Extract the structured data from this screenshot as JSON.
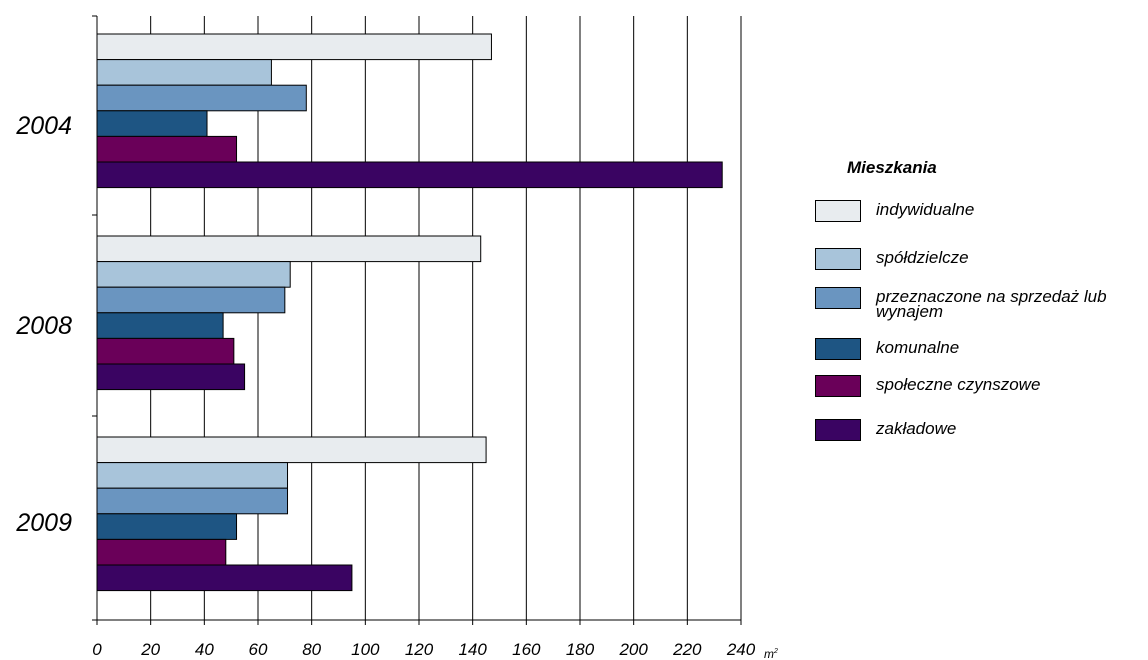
{
  "chart_data": {
    "type": "bar",
    "orientation": "horizontal",
    "categories": [
      "2004",
      "2008",
      "2009"
    ],
    "series": [
      {
        "name": "indywidualne",
        "color": "#e8ecef",
        "values": [
          147,
          143,
          145
        ]
      },
      {
        "name": "spółdzielcze",
        "color": "#a8c4da",
        "values": [
          65,
          72,
          71
        ]
      },
      {
        "name": "przeznaczone na sprzedaż lub wynajem",
        "color": "#6a95c0",
        "values": [
          78,
          70,
          71
        ]
      },
      {
        "name": "komunalne",
        "color": "#1e5583",
        "values": [
          41,
          47,
          52
        ]
      },
      {
        "name": "społeczne czynszowe",
        "color": "#6a0059",
        "values": [
          52,
          51,
          48
        ]
      },
      {
        "name": "zakładowe",
        "color": "#3a0462",
        "values": [
          233,
          55,
          95
        ]
      }
    ],
    "x_ticks": [
      "0",
      "20",
      "40",
      "60",
      "80",
      "100",
      "120",
      "140",
      "160",
      "180",
      "200",
      "220",
      "240"
    ],
    "xlim": [
      0,
      240
    ],
    "unit": "m",
    "unit_superscript": "2",
    "grid": "vertical",
    "legend": {
      "title": "Mieszkania",
      "placement": "right",
      "labels": [
        "indywidualne",
        "spółdzielcze",
        "przeznaczone na sprzedaż lub wynajem",
        "komunalne",
        "społeczne czynszowe",
        "zakładowe"
      ]
    }
  }
}
